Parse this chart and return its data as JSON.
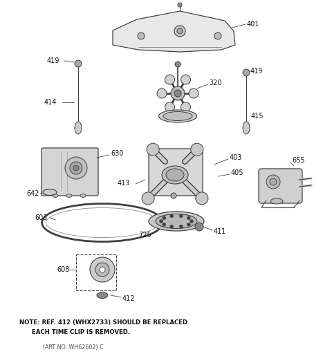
{
  "bg_color": "#ffffff",
  "line_color": "#404040",
  "label_color": "#111111",
  "note_line1": "NOTE: REF. 412 (WHX2733) SHOULD BE REPLACED",
  "note_line2": "      EACH TIME CLIP IS REMOVED.",
  "art_no": "(ART NO. WH62602) C",
  "figsize": [
    4.8,
    5.12
  ],
  "dpi": 100
}
